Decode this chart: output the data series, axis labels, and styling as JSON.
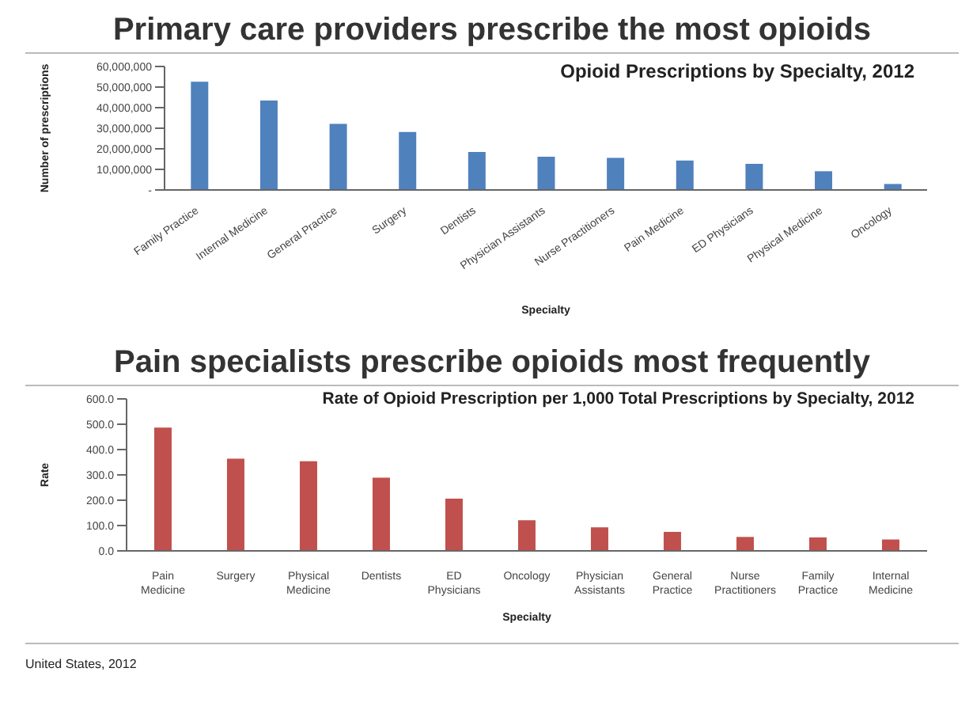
{
  "chart_data": [
    {
      "type": "bar",
      "title": "Primary care providers prescribe the most opioids",
      "subtitle": "Opioid Prescriptions by Specialty, 2012",
      "xlabel": "Specialty",
      "ylabel": "Number of prescriptions",
      "categories": [
        "Family Practice",
        "Internal Medicine",
        "General Practice",
        "Surgery",
        "Dentists",
        "Physician Assistants",
        "Nurse Practitioners",
        "Pain Medicine",
        "ED Physicians",
        "Physical Medicine",
        "Oncology"
      ],
      "series": [
        {
          "color": "#4f81bd",
          "values": [
            52600000,
            43500000,
            32100000,
            28200000,
            18500000,
            16200000,
            15600000,
            14300000,
            12700000,
            9100000,
            2900000
          ]
        }
      ],
      "ylim": [
        0,
        60000000
      ],
      "yticks": [
        {
          "value": 0,
          "label": "-"
        },
        {
          "value": 10000000,
          "label": "10,000,000"
        },
        {
          "value": 20000000,
          "label": "20,000,000"
        },
        {
          "value": 30000000,
          "label": "30,000,000"
        },
        {
          "value": 40000000,
          "label": "40,000,000"
        },
        {
          "value": 50000000,
          "label": "50,000,000"
        },
        {
          "value": 60000000,
          "label": "60,000,000"
        }
      ],
      "grid": false,
      "legend": false
    },
    {
      "type": "bar",
      "title": "Pain specialists prescribe opioids most frequently",
      "subtitle": "Rate of Opioid Prescription per 1,000 Total Prescriptions by Specialty, 2012",
      "xlabel": "Specialty",
      "ylabel": "Rate",
      "categories": [
        "Pain Medicine",
        "Surgery",
        "Physical Medicine",
        "Dentists",
        "ED Physicians",
        "Oncology",
        "Physician Assistants",
        "General Practice",
        "Nurse Practitioners",
        "Family Practice",
        "Internal Medicine"
      ],
      "series": [
        {
          "color": "#c0504d",
          "values": [
            487,
            364,
            354,
            289,
            206,
            121,
            93,
            75,
            55,
            53,
            45
          ]
        }
      ],
      "ylim": [
        0,
        600
      ],
      "yticks": [
        {
          "value": 0,
          "label": "0.0"
        },
        {
          "value": 100,
          "label": "100.0"
        },
        {
          "value": 200,
          "label": "200.0"
        },
        {
          "value": 300,
          "label": "300.0"
        },
        {
          "value": 400,
          "label": "400.0"
        },
        {
          "value": 500,
          "label": "500.0"
        },
        {
          "value": 600,
          "label": "600.0"
        }
      ],
      "grid": false,
      "legend": false,
      "annotations": [
        "United States, 2012"
      ]
    }
  ]
}
